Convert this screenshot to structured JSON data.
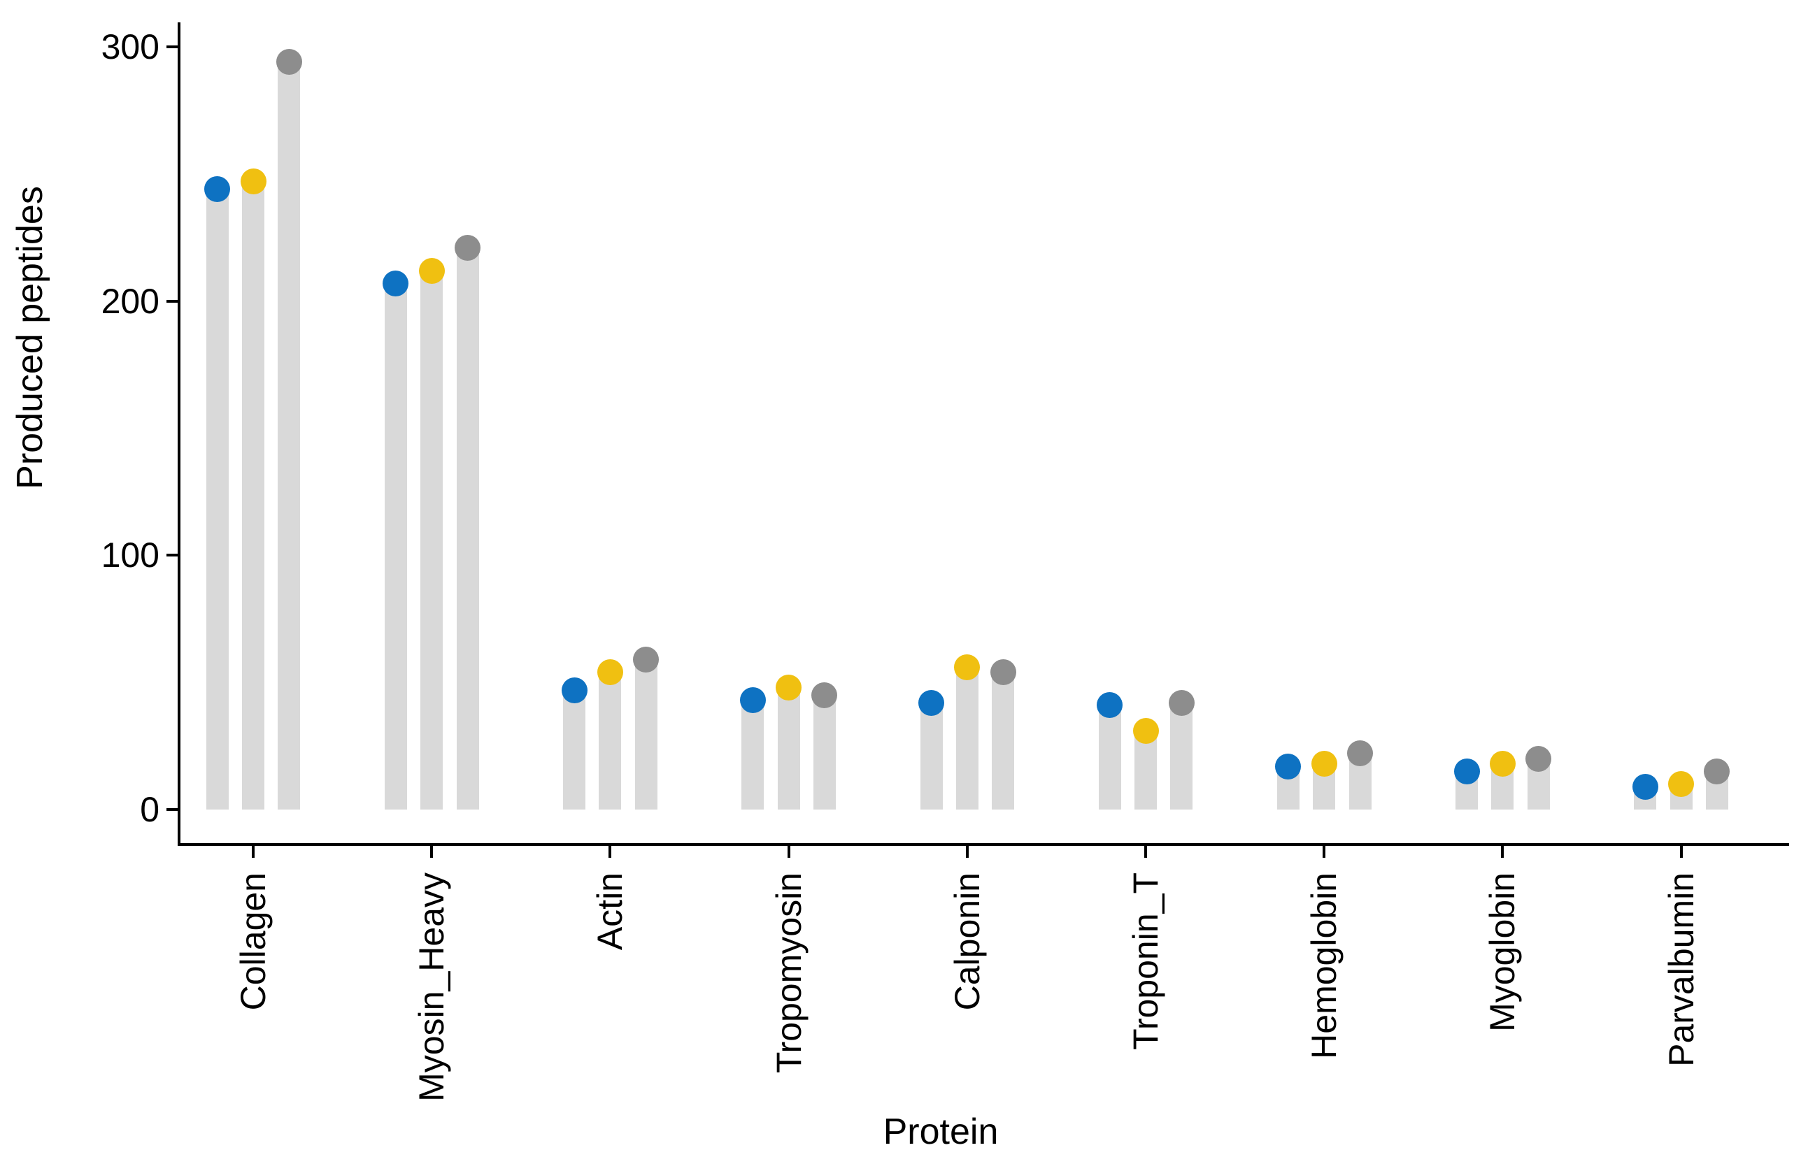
{
  "figure": {
    "background": "#ffffff",
    "axis_color": "#000000",
    "text_color": "#000000"
  },
  "chart_data": {
    "type": "bar",
    "style": "lollipop: light-gray value bars capped with colored dots, grouped by protein, 3 series per group",
    "title": "",
    "xlabel": "Protein",
    "ylabel": "Produced peptides",
    "ylim": [
      0,
      300
    ],
    "y_ticks": [
      0,
      100,
      200,
      300
    ],
    "grid": false,
    "legend": "none",
    "bar_color": "#d9d9d9",
    "categories": [
      "Collagen",
      "Myosin_Heavy",
      "Actin",
      "Tropomyosin",
      "Calponin",
      "Troponin_T",
      "Hemoglobin",
      "Myoglobin",
      "Parvalbumin"
    ],
    "series": [
      {
        "name": "blue",
        "color": "#0e72c2",
        "values": [
          244,
          207,
          47,
          43,
          42,
          41,
          17,
          15,
          9
        ]
      },
      {
        "name": "yellow",
        "color": "#f0c011",
        "values": [
          247,
          212,
          54,
          48,
          56,
          31,
          18,
          18,
          10
        ]
      },
      {
        "name": "gray",
        "color": "#8d8d8d",
        "values": [
          294,
          221,
          59,
          45,
          54,
          42,
          22,
          20,
          15
        ]
      }
    ]
  }
}
